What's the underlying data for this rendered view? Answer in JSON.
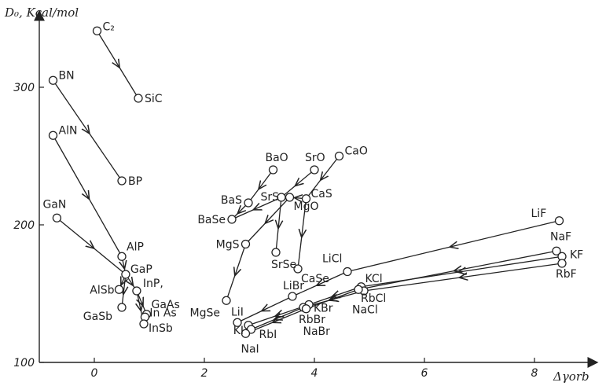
{
  "chart_data": {
    "type": "scatter",
    "title": "",
    "ylabel": "D₀, Kcal/mol",
    "xlabel": "Δγorb",
    "xlim": [
      -0.8,
      8.8
    ],
    "ylim": [
      100,
      355
    ],
    "x_ticks": [
      {
        "value": 0,
        "label": "0"
      },
      {
        "value": 2,
        "label": "2"
      },
      {
        "value": 4,
        "label": "4"
      },
      {
        "value": 6,
        "label": "6"
      },
      {
        "value": 8,
        "label": "8"
      }
    ],
    "y_ticks": [
      {
        "value": 100,
        "label": "100"
      },
      {
        "value": 200,
        "label": "200"
      },
      {
        "value": 300,
        "label": "300"
      }
    ],
    "points": [
      {
        "name": "C₂",
        "x": 0.05,
        "y": 341
      },
      {
        "name": "SiC",
        "x": 0.8,
        "y": 292
      },
      {
        "name": "BN",
        "x": -0.75,
        "y": 305
      },
      {
        "name": "BP",
        "x": 0.5,
        "y": 232
      },
      {
        "name": "AlN",
        "x": -0.75,
        "y": 265
      },
      {
        "name": "AlP",
        "x": 0.5,
        "y": 177
      },
      {
        "name": "GaN",
        "x": -0.68,
        "y": 205
      },
      {
        "name": "GaP",
        "x": 0.57,
        "y": 164
      },
      {
        "name": "AlSb",
        "x": 0.45,
        "y": 153
      },
      {
        "name": "InP,",
        "x": 0.77,
        "y": 152
      },
      {
        "name": "GaAs",
        "x": 0.95,
        "y": 135
      },
      {
        "name": "GaSb",
        "x": 0.5,
        "y": 140
      },
      {
        "name": "In As",
        "x": 0.92,
        "y": 133
      },
      {
        "name": "InSb",
        "x": 0.9,
        "y": 128
      },
      {
        "name": "BaO",
        "x": 3.25,
        "y": 240
      },
      {
        "name": "SrO",
        "x": 4.0,
        "y": 240
      },
      {
        "name": "CaO",
        "x": 4.45,
        "y": 250
      },
      {
        "name": "BaS",
        "x": 2.8,
        "y": 216
      },
      {
        "name": "SrS",
        "x": 3.4,
        "y": 220
      },
      {
        "name": "CaS",
        "x": 3.85,
        "y": 219
      },
      {
        "name": "MgO",
        "x": 3.55,
        "y": 220
      },
      {
        "name": "BaSe",
        "x": 2.5,
        "y": 204
      },
      {
        "name": "MgS",
        "x": 2.75,
        "y": 186
      },
      {
        "name": "SrSe",
        "x": 3.3,
        "y": 180
      },
      {
        "name": "CaSe",
        "x": 3.7,
        "y": 168
      },
      {
        "name": "MgSe",
        "x": 2.4,
        "y": 145
      },
      {
        "name": "LiF",
        "x": 8.45,
        "y": 203
      },
      {
        "name": "NaF",
        "x": 8.4,
        "y": 181
      },
      {
        "name": "KF",
        "x": 8.5,
        "y": 177
      },
      {
        "name": "RbF",
        "x": 8.5,
        "y": 172
      },
      {
        "name": "LiCl",
        "x": 4.6,
        "y": 166
      },
      {
        "name": "LiBr",
        "x": 3.6,
        "y": 148
      },
      {
        "name": "LiI",
        "x": 2.6,
        "y": 129
      },
      {
        "name": "KCl",
        "x": 4.85,
        "y": 155
      },
      {
        "name": "RbCl",
        "x": 4.9,
        "y": 152
      },
      {
        "name": "NaCl",
        "x": 4.8,
        "y": 153
      },
      {
        "name": "KBr",
        "x": 3.9,
        "y": 142
      },
      {
        "name": "RbBr",
        "x": 3.8,
        "y": 140
      },
      {
        "name": "NaBr",
        "x": 3.85,
        "y": 139
      },
      {
        "name": "KI",
        "x": 2.8,
        "y": 127
      },
      {
        "name": "RbI",
        "x": 2.85,
        "y": 124
      },
      {
        "name": "NaI",
        "x": 2.75,
        "y": 121
      }
    ],
    "arrows": [
      {
        "from": "C₂",
        "to": "SiC"
      },
      {
        "from": "BN",
        "to": "BP"
      },
      {
        "from": "AlN",
        "to": "AlP"
      },
      {
        "from": "GaN",
        "to": "GaP"
      },
      {
        "from": "AlP",
        "to": "GaP"
      },
      {
        "from": "GaP",
        "to": "AlSb"
      },
      {
        "from": "GaP",
        "to": "InP,"
      },
      {
        "from": "InP,",
        "to": "InSb"
      },
      {
        "from": "GaP",
        "to": "GaSb"
      },
      {
        "from": "InP,",
        "to": "GaAs"
      },
      {
        "from": "BaO",
        "to": "BaS"
      },
      {
        "from": "BaS",
        "to": "BaSe"
      },
      {
        "from": "SrO",
        "to": "SrS"
      },
      {
        "from": "SrS",
        "to": "BaSe"
      },
      {
        "from": "SrS",
        "to": "SrSe"
      },
      {
        "from": "CaO",
        "to": "CaS"
      },
      {
        "from": "CaS",
        "to": "CaSe"
      },
      {
        "from": "CaS",
        "to": "MgO"
      },
      {
        "from": "MgO",
        "to": "MgS"
      },
      {
        "from": "MgS",
        "to": "MgSe"
      },
      {
        "from": "LiF",
        "to": "LiCl"
      },
      {
        "from": "LiCl",
        "to": "LiBr"
      },
      {
        "from": "LiBr",
        "to": "LiI"
      },
      {
        "from": "NaF",
        "to": "NaCl"
      },
      {
        "from": "NaCl",
        "to": "NaBr"
      },
      {
        "from": "NaBr",
        "to": "NaI"
      },
      {
        "from": "KF",
        "to": "KCl"
      },
      {
        "from": "KCl",
        "to": "KBr"
      },
      {
        "from": "KBr",
        "to": "KI"
      },
      {
        "from": "RbF",
        "to": "RbCl"
      },
      {
        "from": "RbCl",
        "to": "RbBr"
      },
      {
        "from": "RbBr",
        "to": "RbI"
      }
    ]
  }
}
